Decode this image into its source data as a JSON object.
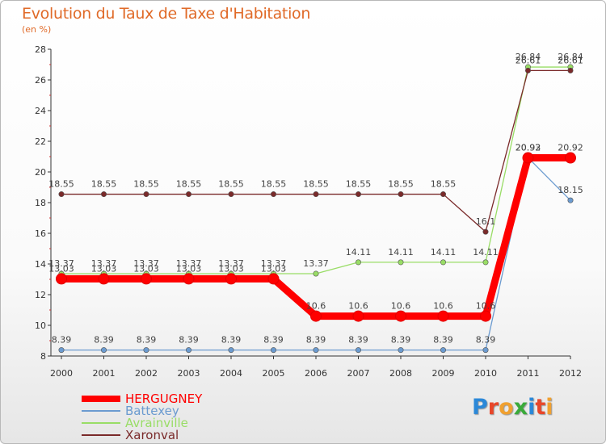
{
  "chart_data": {
    "type": "line",
    "title": "Evolution du Taux de Taxe d'Habitation",
    "ylabel": "(en %)",
    "xlabel": "",
    "categories": [
      "2000",
      "2001",
      "2002",
      "2003",
      "2004",
      "2005",
      "2006",
      "2007",
      "2008",
      "2009",
      "2010",
      "2011",
      "2012"
    ],
    "ylim": [
      8,
      28
    ],
    "yticks": [
      "8",
      "10",
      "12",
      "14",
      "16",
      "18",
      "20",
      "22",
      "24",
      "26",
      "28"
    ],
    "grid": false,
    "legend_position": "bottom-left",
    "series": [
      {
        "name": "HERGUGNEY",
        "color": "#ff0000",
        "values": [
          13.03,
          13.03,
          13.03,
          13.03,
          13.03,
          13.03,
          10.6,
          10.6,
          10.6,
          10.6,
          10.6,
          20.92,
          20.92
        ],
        "labels": [
          "13.03",
          "13.03",
          "13.03",
          "13.03",
          "13.03",
          "13.03",
          "10.6",
          "10.6",
          "10.6",
          "10.6",
          "10.6",
          "20.92",
          "20.92"
        ]
      },
      {
        "name": "Battexey",
        "color": "#6b9bd0",
        "values": [
          8.39,
          8.39,
          8.39,
          8.39,
          8.39,
          8.39,
          8.39,
          8.39,
          8.39,
          8.39,
          8.39,
          20.93,
          18.15
        ],
        "labels": [
          "8.39",
          "8.39",
          "8.39",
          "8.39",
          "8.39",
          "8.39",
          "8.39",
          "8.39",
          "8.39",
          "8.39",
          "8.39",
          "20.93",
          "18.15"
        ]
      },
      {
        "name": "Avrainville",
        "color": "#99dd66",
        "values": [
          13.37,
          13.37,
          13.37,
          13.37,
          13.37,
          13.37,
          13.37,
          14.11,
          14.11,
          14.11,
          14.11,
          26.84,
          26.84
        ],
        "labels": [
          "13.37",
          "13.37",
          "13.37",
          "13.37",
          "13.37",
          "13.37",
          "13.37",
          "14.11",
          "14.11",
          "14.11",
          "14.11",
          "26.84",
          "26.84"
        ]
      },
      {
        "name": "Xaronval",
        "color": "#7a2a2a",
        "values": [
          18.55,
          18.55,
          18.55,
          18.55,
          18.55,
          18.55,
          18.55,
          18.55,
          18.55,
          18.55,
          16.1,
          26.61,
          26.61
        ],
        "labels": [
          "18.55",
          "18.55",
          "18.55",
          "18.55",
          "18.55",
          "18.55",
          "18.55",
          "18.55",
          "18.55",
          "18.55",
          "16.1",
          "26.61",
          "26.61"
        ]
      }
    ]
  },
  "logo": {
    "letters": [
      "P",
      "r",
      "o",
      "x",
      "i",
      "t",
      "i"
    ],
    "colors": [
      "#2b88d8",
      "#e8462a",
      "#f0a030",
      "#3aaa3a",
      "#2b88d8",
      "#e8462a",
      "#f0a030"
    ]
  }
}
